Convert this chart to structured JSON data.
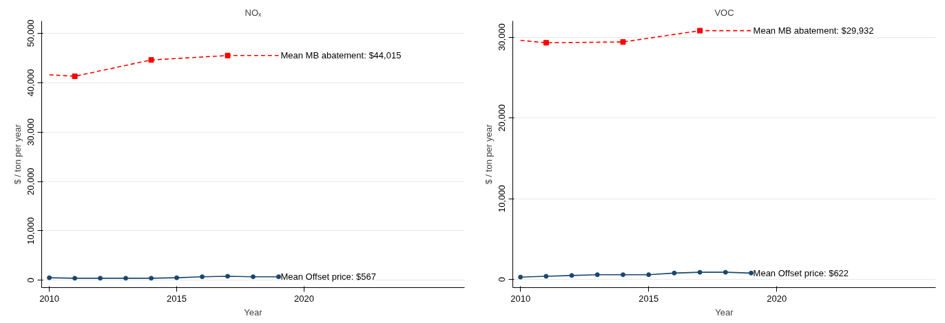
{
  "chart_data": [
    {
      "type": "line",
      "title": "NOₓ",
      "xlabel": "Year",
      "ylabel": "$ / ton per year",
      "xlim": [
        2009.7,
        2026.3
      ],
      "ylim": [
        -1500,
        52500
      ],
      "xticks": [
        2010,
        2015,
        2020
      ],
      "yticks": [
        {
          "value": 0,
          "label": "0"
        },
        {
          "value": 10000,
          "label": "10,000"
        },
        {
          "value": 20000,
          "label": "20,000"
        },
        {
          "value": 30000,
          "label": "30,000"
        },
        {
          "value": 40000,
          "label": "40,000"
        },
        {
          "value": 50000,
          "label": "50,000"
        }
      ],
      "grid": "y",
      "series": [
        {
          "type": "line",
          "name": "Mean MB abatement: $44,015",
          "color": "#ff0000",
          "line_style": "dashed",
          "marker": "none",
          "x": [
            2010,
            2011,
            2014,
            2017,
            2019
          ],
          "values": [
            41600,
            41300,
            44600,
            45500,
            45500
          ]
        },
        {
          "type": "scatter",
          "color": "#ff0000",
          "marker": "square",
          "x": [
            2011,
            2014,
            2017
          ],
          "values": [
            41300,
            44600,
            45500
          ]
        },
        {
          "type": "line",
          "name": "Mean Offset price: $567",
          "color": "#1a476f",
          "line_style": "solid",
          "marker": "circle",
          "x": [
            2010,
            2011,
            2012,
            2013,
            2014,
            2015,
            2016,
            2017,
            2018,
            2019
          ],
          "values": [
            500,
            400,
            400,
            400,
            400,
            500,
            700,
            800,
            700,
            700
          ]
        }
      ]
    },
    {
      "type": "line",
      "title": "VOC",
      "xlabel": "Year",
      "ylabel": "$ / ton per year",
      "xlim": [
        2009.7,
        2026.2
      ],
      "ylim": [
        -1000,
        32000
      ],
      "xticks": [
        2010,
        2015,
        2020
      ],
      "yticks": [
        {
          "value": 0,
          "label": "0"
        },
        {
          "value": 10000,
          "label": "10,000"
        },
        {
          "value": 20000,
          "label": "20,000"
        },
        {
          "value": 30000,
          "label": "30,000"
        }
      ],
      "grid": "y",
      "series": [
        {
          "type": "line",
          "name": "Mean MB abatement: $29,932",
          "color": "#ff0000",
          "line_style": "dashed",
          "marker": "none",
          "x": [
            2010,
            2011,
            2014,
            2017,
            2019
          ],
          "values": [
            29600,
            29300,
            29400,
            30800,
            30800
          ]
        },
        {
          "type": "scatter",
          "color": "#ff0000",
          "marker": "square",
          "x": [
            2011,
            2014,
            2017
          ],
          "values": [
            29300,
            29400,
            30800
          ]
        },
        {
          "type": "line",
          "name": "Mean Offset price: $622",
          "color": "#1a476f",
          "line_style": "solid",
          "marker": "circle",
          "x": [
            2010,
            2011,
            2012,
            2013,
            2014,
            2015,
            2016,
            2017,
            2018,
            2019
          ],
          "values": [
            300,
            400,
            500,
            600,
            600,
            600,
            800,
            900,
            900,
            800
          ]
        }
      ]
    }
  ]
}
